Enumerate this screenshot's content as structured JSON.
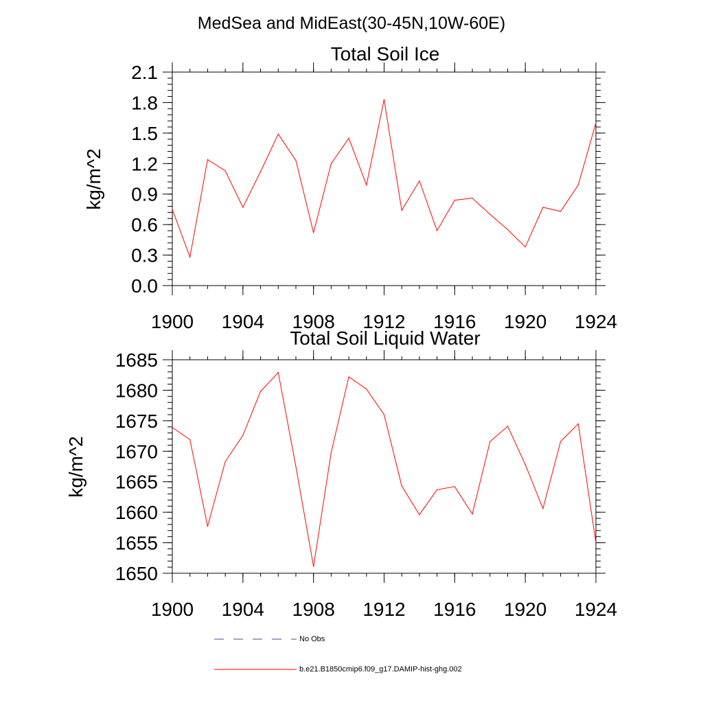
{
  "title": "MedSea and MidEast(30-45N,10W-60E)",
  "legend": [
    {
      "label": "No Obs",
      "color": "#4a4a8a",
      "style": "dashed"
    },
    {
      "label": "b.e21.B1850cmip6.f09_g17.DAMIP-hist-ghg.002",
      "color": "#ff0000",
      "style": "solid"
    }
  ],
  "chart_data": [
    {
      "type": "line",
      "title": "Total Soil Ice",
      "xlabel": "",
      "ylabel": "kg/m^2",
      "xlim": [
        1900,
        1924
      ],
      "ylim": [
        0,
        2.1
      ],
      "xticks": [
        1900,
        1904,
        1908,
        1912,
        1916,
        1920,
        1924
      ],
      "xtick_labels": [
        "1900",
        "1904",
        "1908",
        "1912",
        "1916",
        "1920",
        "1924"
      ],
      "yticks": [
        0,
        0.3,
        0.6,
        0.9,
        1.2,
        1.5,
        1.8,
        2.1
      ],
      "ytick_labels": [
        "0.0",
        "0.3",
        "0.6",
        "0.9",
        "1.2",
        "1.5",
        "1.8",
        "2.1"
      ],
      "yminor_step": 0.06,
      "xminor_step": 1,
      "series": [
        {
          "color": "#ff0000",
          "x": [
            1900,
            1901,
            1902,
            1903,
            1904,
            1905,
            1906,
            1907,
            1908,
            1909,
            1910,
            1911,
            1912,
            1913,
            1914,
            1915,
            1916,
            1917,
            1918,
            1919,
            1920,
            1921,
            1922,
            1923,
            1924
          ],
          "values": [
            0.75,
            0.28,
            1.24,
            1.13,
            0.77,
            1.12,
            1.49,
            1.23,
            0.52,
            1.2,
            1.45,
            0.99,
            1.83,
            0.74,
            1.03,
            0.54,
            0.84,
            0.86,
            0.7,
            0.55,
            0.38,
            0.77,
            0.73,
            0.99,
            1.6
          ]
        }
      ]
    },
    {
      "type": "line",
      "title": "Total Soil Liquid Water",
      "xlabel": "",
      "ylabel": "kg/m^2",
      "xlim": [
        1900,
        1924
      ],
      "ylim": [
        1650,
        1685
      ],
      "xticks": [
        1900,
        1904,
        1908,
        1912,
        1916,
        1920,
        1924
      ],
      "xtick_labels": [
        "1900",
        "1904",
        "1908",
        "1912",
        "1916",
        "1920",
        "1924"
      ],
      "yticks": [
        1650,
        1655,
        1660,
        1665,
        1670,
        1675,
        1680,
        1685
      ],
      "ytick_labels": [
        "1650",
        "1655",
        "1660",
        "1665",
        "1670",
        "1675",
        "1680",
        "1685"
      ],
      "yminor_step": 1,
      "xminor_step": 1,
      "series": [
        {
          "color": "#ff0000",
          "x": [
            1900,
            1901,
            1902,
            1903,
            1904,
            1905,
            1906,
            1907,
            1908,
            1909,
            1910,
            1911,
            1912,
            1913,
            1914,
            1915,
            1916,
            1917,
            1918,
            1919,
            1920,
            1921,
            1922,
            1923,
            1924
          ],
          "values": [
            1673.9,
            1671.9,
            1657.7,
            1668.3,
            1672.6,
            1679.8,
            1682.9,
            1667.5,
            1651.1,
            1669.8,
            1682.2,
            1680.2,
            1676.0,
            1664.3,
            1659.6,
            1663.7,
            1664.2,
            1659.7,
            1671.6,
            1674.1,
            1667.8,
            1660.6,
            1671.6,
            1674.5,
            1655.0
          ]
        }
      ]
    }
  ]
}
